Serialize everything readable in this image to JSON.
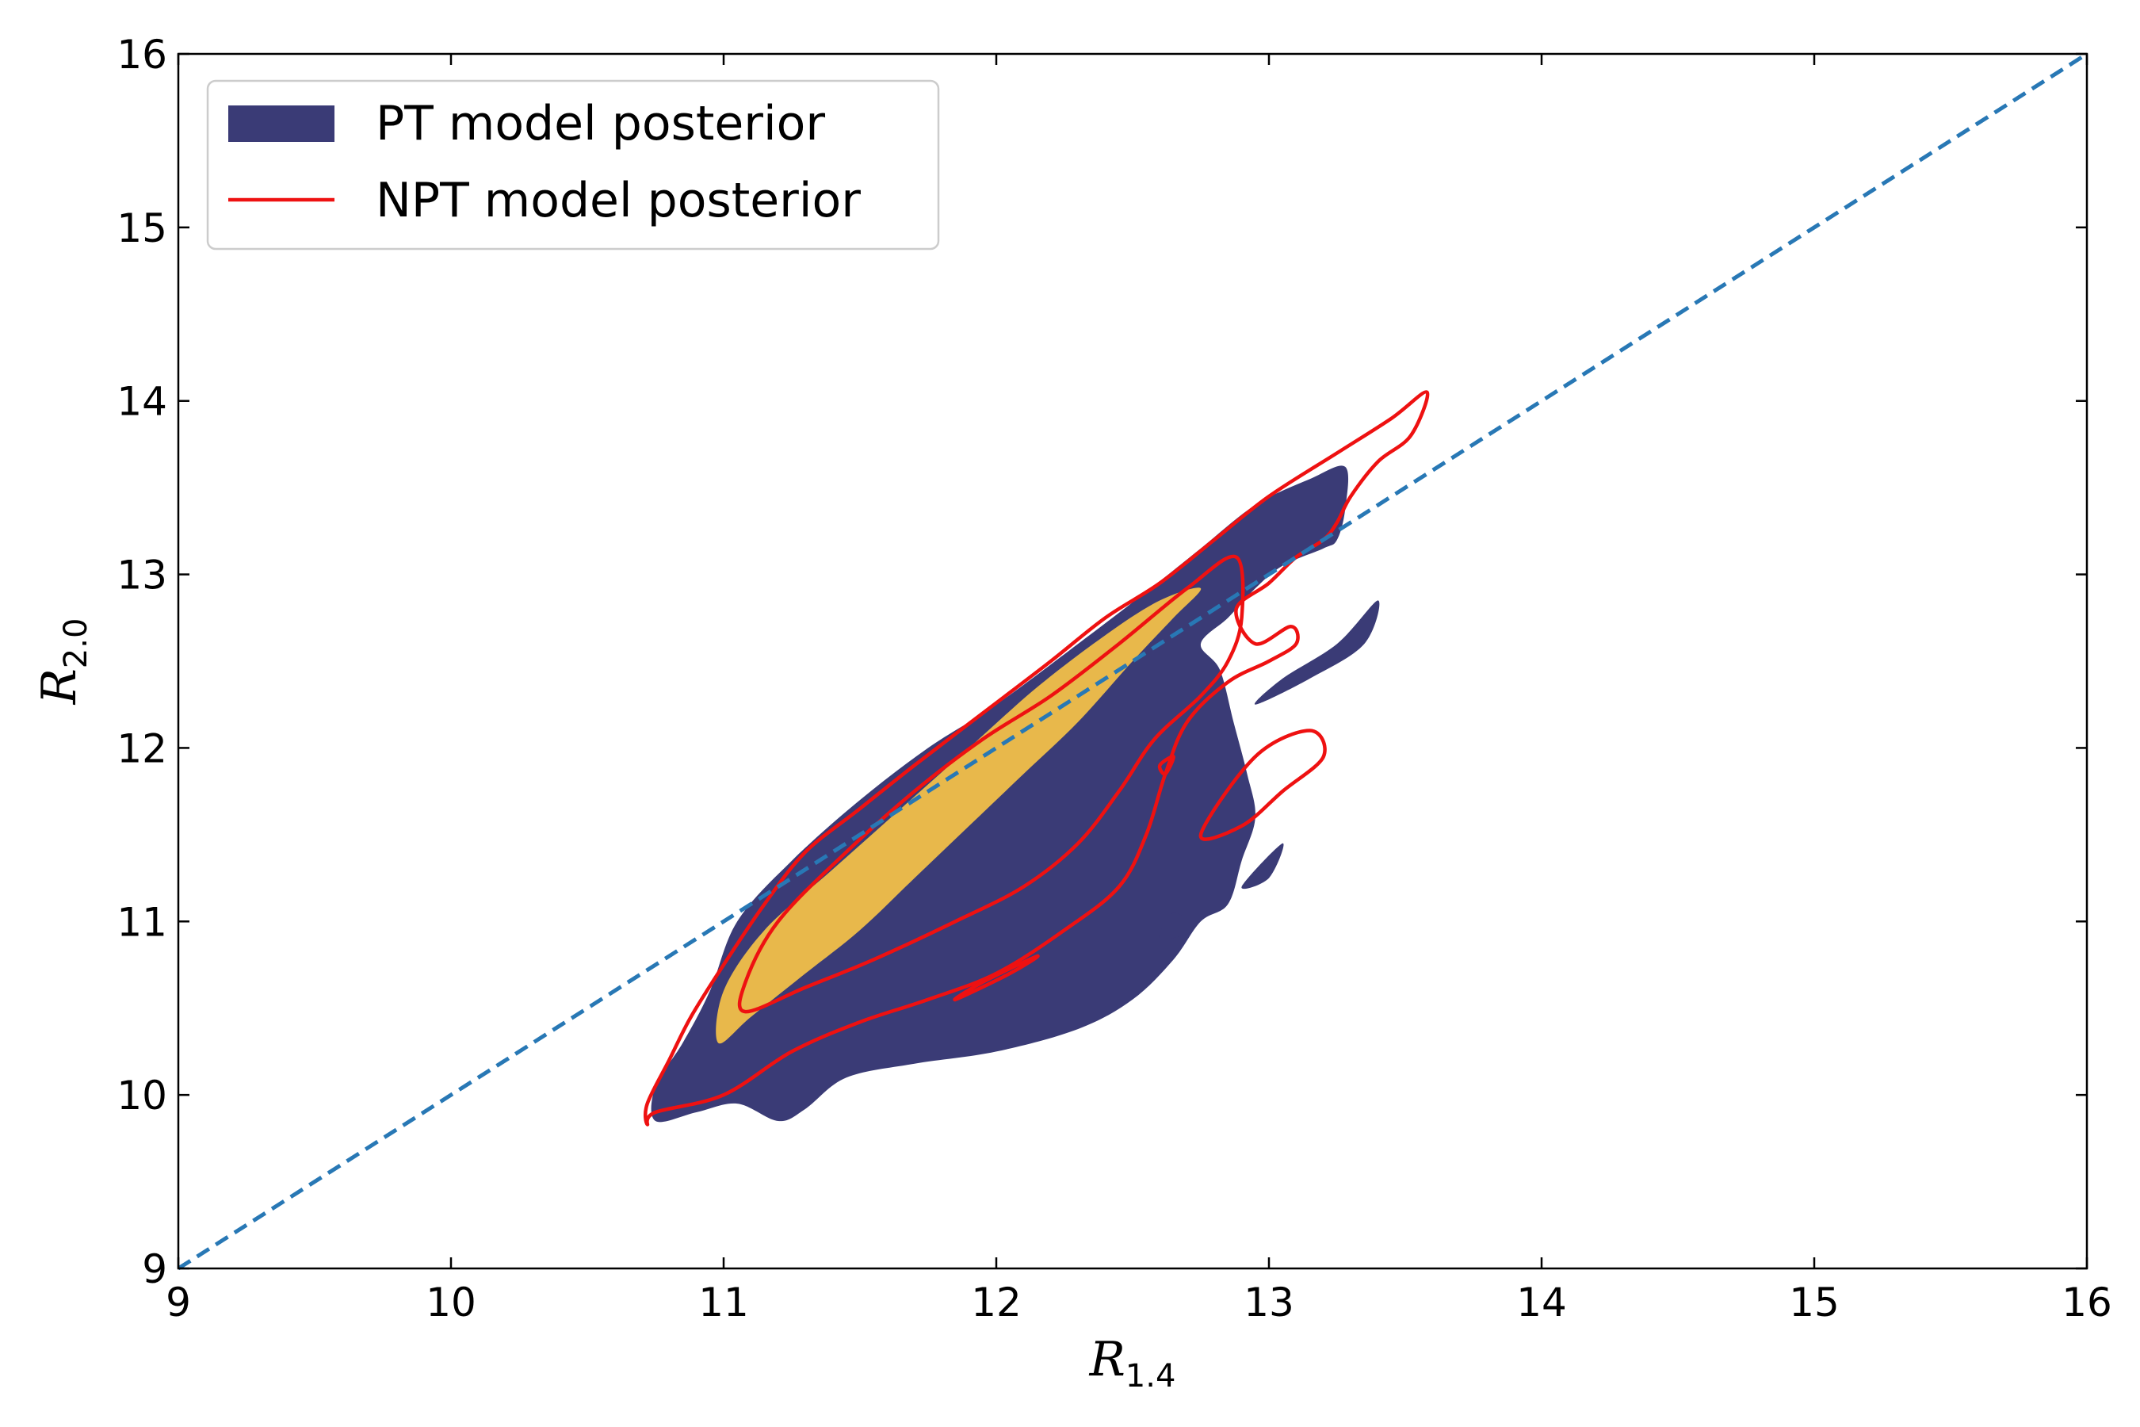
{
  "chart_data": {
    "type": "contour",
    "xlabel": {
      "main": "R",
      "sub": "1.4"
    },
    "ylabel": {
      "main": "R",
      "sub": "2.0"
    },
    "xlim": [
      9,
      16
    ],
    "ylim": [
      9,
      16
    ],
    "xticks": [
      9,
      10,
      11,
      12,
      13,
      14,
      15,
      16
    ],
    "yticks": [
      9,
      10,
      11,
      12,
      13,
      14,
      15,
      16
    ],
    "grid": false,
    "legend": {
      "placement": "top-left",
      "entries": [
        {
          "label": "PT model posterior",
          "style": "filled",
          "color": "#3a3b76"
        },
        {
          "label": "NPT model posterior",
          "style": "line",
          "color": "#ee1111"
        }
      ]
    },
    "reference_line": {
      "label": "",
      "from": [
        9,
        9
      ],
      "to": [
        16,
        16
      ],
      "color": "#2878b5",
      "style": "dashed"
    },
    "series": [
      {
        "name": "PT model posterior",
        "level": "outer",
        "color": "#3a3b76",
        "regions": [
          [
            [
              10.75,
              9.85
            ],
            [
              10.9,
              9.9
            ],
            [
              11.05,
              9.95
            ],
            [
              11.2,
              9.85
            ],
            [
              11.3,
              9.92
            ],
            [
              11.45,
              10.1
            ],
            [
              11.7,
              10.18
            ],
            [
              12.0,
              10.25
            ],
            [
              12.3,
              10.38
            ],
            [
              12.5,
              10.55
            ],
            [
              12.65,
              10.78
            ],
            [
              12.75,
              11.0
            ],
            [
              12.85,
              11.1
            ],
            [
              12.9,
              11.35
            ],
            [
              12.95,
              11.6
            ],
            [
              12.92,
              11.85
            ],
            [
              12.87,
              12.15
            ],
            [
              12.82,
              12.45
            ],
            [
              12.75,
              12.6
            ],
            [
              12.85,
              12.75
            ],
            [
              12.95,
              12.92
            ],
            [
              13.05,
              13.05
            ],
            [
              13.2,
              13.15
            ],
            [
              13.25,
              13.2
            ],
            [
              13.28,
              13.38
            ],
            [
              13.28,
              13.62
            ],
            [
              13.15,
              13.55
            ],
            [
              12.95,
              13.4
            ],
            [
              12.75,
              13.15
            ],
            [
              12.55,
              12.9
            ],
            [
              12.3,
              12.6
            ],
            [
              12.0,
              12.25
            ],
            [
              11.75,
              12.0
            ],
            [
              11.5,
              11.7
            ],
            [
              11.25,
              11.35
            ],
            [
              11.05,
              11.0
            ],
            [
              10.95,
              10.6
            ],
            [
              10.85,
              10.3
            ],
            [
              10.75,
              10.05
            ]
          ],
          [
            [
              12.9,
              11.2
            ],
            [
              13.05,
              11.45
            ],
            [
              13.0,
              11.25
            ]
          ],
          [
            [
              12.6,
              10.9
            ],
            [
              12.72,
              10.95
            ],
            [
              12.65,
              11.05
            ]
          ],
          [
            [
              12.95,
              12.25
            ],
            [
              13.15,
              12.4
            ],
            [
              13.35,
              12.6
            ],
            [
              13.4,
              12.85
            ],
            [
              13.25,
              12.6
            ],
            [
              13.05,
              12.4
            ]
          ]
        ]
      },
      {
        "name": "PT model posterior",
        "level": "inner",
        "color": "#e8b84b",
        "regions": [
          [
            [
              10.98,
              10.3
            ],
            [
              11.1,
              10.45
            ],
            [
              11.3,
              10.7
            ],
            [
              11.5,
              10.95
            ],
            [
              11.7,
              11.25
            ],
            [
              11.9,
              11.55
            ],
            [
              12.1,
              11.85
            ],
            [
              12.3,
              12.15
            ],
            [
              12.5,
              12.5
            ],
            [
              12.65,
              12.75
            ],
            [
              12.75,
              12.92
            ],
            [
              12.6,
              12.85
            ],
            [
              12.4,
              12.65
            ],
            [
              12.15,
              12.35
            ],
            [
              11.9,
              12.0
            ],
            [
              11.65,
              11.65
            ],
            [
              11.4,
              11.3
            ],
            [
              11.15,
              10.95
            ],
            [
              11.0,
              10.6
            ]
          ]
        ]
      },
      {
        "name": "NPT model posterior",
        "level": "outer",
        "color": "#ee1111",
        "regions": [
          [
            [
              10.72,
              9.83
            ],
            [
              10.75,
              9.9
            ],
            [
              11.0,
              10.0
            ],
            [
              11.25,
              10.25
            ],
            [
              11.5,
              10.42
            ],
            [
              11.75,
              10.55
            ],
            [
              12.0,
              10.7
            ],
            [
              12.25,
              10.95
            ],
            [
              12.45,
              11.2
            ],
            [
              12.55,
              11.5
            ],
            [
              12.62,
              11.85
            ],
            [
              12.7,
              12.15
            ],
            [
              12.85,
              12.38
            ],
            [
              13.0,
              12.5
            ],
            [
              13.1,
              12.6
            ],
            [
              13.08,
              12.7
            ],
            [
              12.95,
              12.6
            ],
            [
              12.88,
              12.8
            ],
            [
              13.0,
              12.95
            ],
            [
              13.1,
              13.1
            ],
            [
              13.2,
              13.2
            ],
            [
              13.25,
              13.3
            ],
            [
              13.3,
              13.45
            ],
            [
              13.4,
              13.65
            ],
            [
              13.52,
              13.8
            ],
            [
              13.58,
              14.05
            ],
            [
              13.45,
              13.9
            ],
            [
              13.25,
              13.7
            ],
            [
              13.0,
              13.45
            ],
            [
              12.8,
              13.2
            ],
            [
              12.6,
              12.95
            ],
            [
              12.4,
              12.75
            ],
            [
              12.2,
              12.5
            ],
            [
              11.95,
              12.2
            ],
            [
              11.7,
              11.9
            ],
            [
              11.5,
              11.65
            ],
            [
              11.3,
              11.4
            ],
            [
              11.15,
              11.1
            ],
            [
              11.0,
              10.75
            ],
            [
              10.88,
              10.45
            ],
            [
              10.8,
              10.2
            ],
            [
              10.72,
              9.95
            ]
          ]
        ]
      },
      {
        "name": "NPT model posterior",
        "level": "inner",
        "color": "#ee1111",
        "regions": [
          [
            [
              11.08,
              10.48
            ],
            [
              11.3,
              10.62
            ],
            [
              11.55,
              10.78
            ],
            [
              11.85,
              11.0
            ],
            [
              12.1,
              11.2
            ],
            [
              12.3,
              11.45
            ],
            [
              12.45,
              11.75
            ],
            [
              12.58,
              12.05
            ],
            [
              12.75,
              12.3
            ],
            [
              12.85,
              12.5
            ],
            [
              12.9,
              12.75
            ],
            [
              12.88,
              13.1
            ],
            [
              12.7,
              12.92
            ],
            [
              12.45,
              12.6
            ],
            [
              12.2,
              12.3
            ],
            [
              11.95,
              12.05
            ],
            [
              11.7,
              11.75
            ],
            [
              11.45,
              11.4
            ],
            [
              11.2,
              11.0
            ],
            [
              11.08,
              10.65
            ]
          ],
          [
            [
              13.05,
              11.75
            ],
            [
              13.2,
              11.95
            ],
            [
              13.15,
              12.1
            ],
            [
              12.95,
              11.95
            ],
            [
              12.75,
              11.5
            ],
            [
              12.9,
              11.55
            ]
          ],
          [
            [
              11.85,
              10.55
            ],
            [
              12.05,
              10.7
            ],
            [
              12.15,
              10.8
            ],
            [
              11.95,
              10.65
            ]
          ],
          [
            [
              12.6,
              11.9
            ],
            [
              12.65,
              11.95
            ],
            [
              12.62,
              11.85
            ]
          ]
        ]
      }
    ]
  }
}
